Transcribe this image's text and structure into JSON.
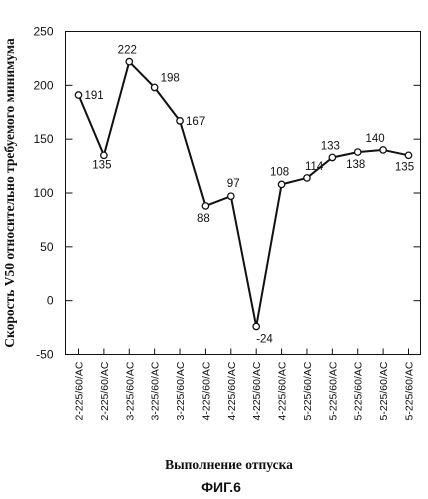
{
  "chart_data": {
    "type": "line",
    "title": "",
    "xlabel": "Выполнение отпуска",
    "ylabel": "Скорость V50 относительно требуемого минимума",
    "ylim": [
      -50,
      250
    ],
    "yticks": [
      -50,
      0,
      50,
      100,
      150,
      200,
      250
    ],
    "grid": false,
    "legend": "none",
    "categories": [
      "2-225/60/AC",
      "2-225/60/AC",
      "3-225/60/AC",
      "3-225/60/AC",
      "3-225/60/AC",
      "4-225/60/AC",
      "4-225/60/AC",
      "4-225/60/AC",
      "4-225/60/AC",
      "5-225/60/AC",
      "5-225/60/AC",
      "5-225/60/AC",
      "5-225/60/AC",
      "5-225/60/AC"
    ],
    "series": [
      {
        "values": [
          191,
          135,
          222,
          198,
          167,
          88,
          97,
          -24,
          108,
          114,
          133,
          138,
          140,
          135
        ],
        "labels": [
          "191",
          "135",
          "222",
          "198",
          "167",
          "88",
          "97",
          "-24",
          "108",
          "114",
          "133",
          "138",
          "140",
          "135"
        ],
        "color": "#111111",
        "marker": "open-circle"
      }
    ],
    "caption": "ФИГ.6"
  }
}
